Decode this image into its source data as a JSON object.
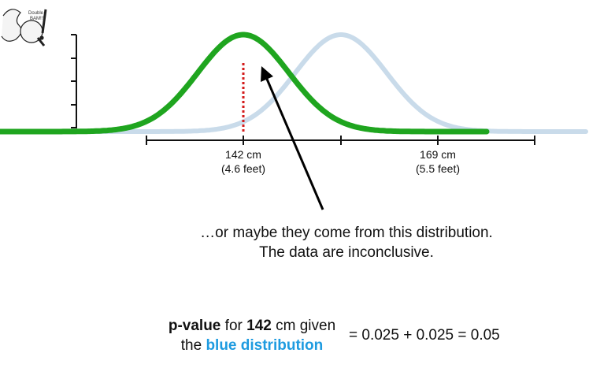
{
  "logo": {
    "icon": "statquest-logo"
  },
  "axis": {
    "tick_labels": [
      {
        "top": "142 cm",
        "bottom": "(4.6 feet)"
      },
      {
        "top": "169 cm",
        "bottom": "(5.5 feet)"
      }
    ]
  },
  "caption": {
    "line1": "…or maybe they come from this distribution.",
    "line2": "The data are inconclusive."
  },
  "pvalue": {
    "bold1": "p-value",
    "text1": " for ",
    "bold2": "142",
    "text2": " cm given",
    "text3": "the ",
    "blue": "blue distribution",
    "equation": "= 0.025 + 0.025 = 0.05"
  },
  "colors": {
    "green_curve": "#1fa51f",
    "blue_curve": "#c9dbea",
    "dotted_line": "#d31a1a",
    "highlight_blue": "#1e9be0"
  }
}
